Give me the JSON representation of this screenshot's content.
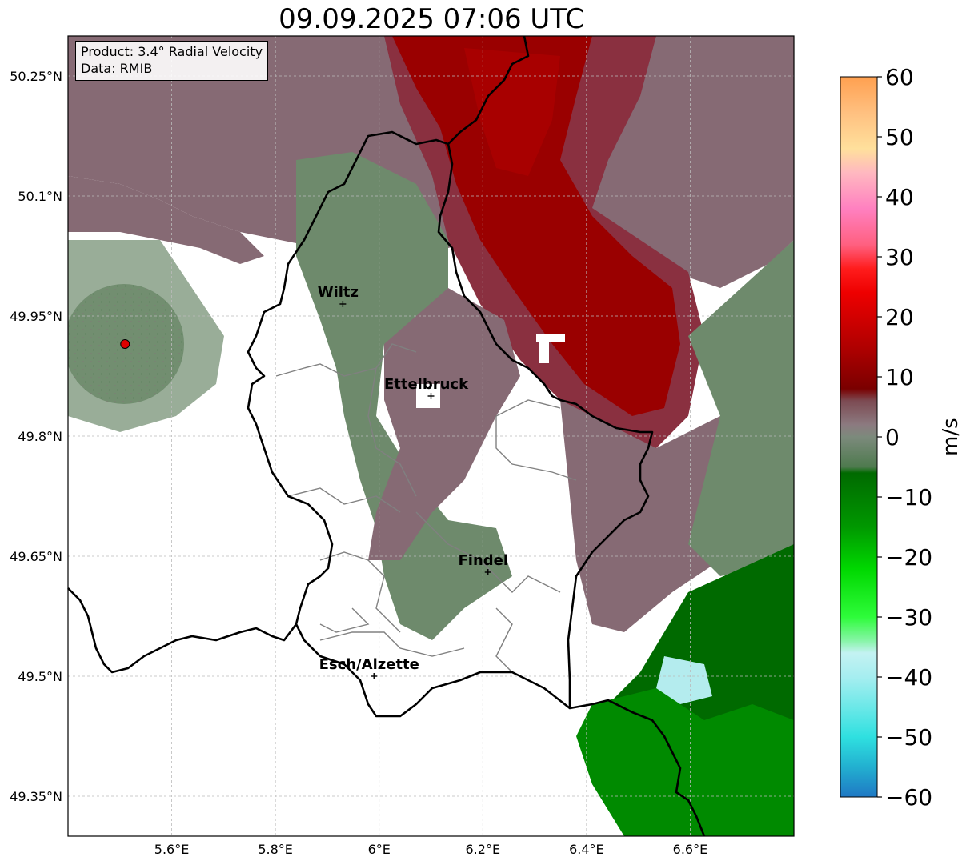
{
  "title": "09.09.2025 07:06 UTC",
  "info": {
    "product": "Product: 3.4° Radial Velocity",
    "data": "Data: RMIB"
  },
  "map": {
    "lon_range": [
      5.4,
      6.8
    ],
    "lat_range": [
      49.3,
      50.3
    ],
    "lon_ticks": [
      "5.6°E",
      "5.8°E",
      "6°E",
      "6.2°E",
      "6.4°E",
      "6.6°E"
    ],
    "lat_ticks": [
      "50.25°N",
      "50.1°N",
      "49.95°N",
      "49.8°N",
      "49.65°N",
      "49.5°N",
      "49.35°N"
    ],
    "radar_site": {
      "lon": 5.51,
      "lat": 49.915,
      "color": "#e00000"
    },
    "cities": [
      {
        "name": "Wiltz",
        "lon": 5.93,
        "lat": 49.965
      },
      {
        "name": "Ettelbruck",
        "lon": 6.1,
        "lat": 49.85
      },
      {
        "name": "Findel",
        "lon": 6.21,
        "lat": 49.63
      },
      {
        "name": "Esch/Alzette",
        "lon": 5.99,
        "lat": 49.5
      }
    ]
  },
  "colorbar": {
    "label": "m/s",
    "min": -60,
    "max": 60,
    "ticks": [
      "60",
      "50",
      "40",
      "30",
      "20",
      "10",
      "0",
      "−10",
      "−20",
      "−30",
      "−40",
      "−50",
      "−60"
    ],
    "stops": [
      {
        "v": -60,
        "c": "#1f78c4"
      },
      {
        "v": -55,
        "c": "#22b0d0"
      },
      {
        "v": -50,
        "c": "#2fe0e0"
      },
      {
        "v": -45,
        "c": "#6ce8e8"
      },
      {
        "v": -40,
        "c": "#a6eef0"
      },
      {
        "v": -36,
        "c": "#c4f2f2"
      },
      {
        "v": -34,
        "c": "#88f5a8"
      },
      {
        "v": -30,
        "c": "#2efc3a"
      },
      {
        "v": -22,
        "c": "#00d800"
      },
      {
        "v": -15,
        "c": "#009800"
      },
      {
        "v": -6,
        "c": "#006a00"
      },
      {
        "v": -5,
        "c": "#4e7a4e"
      },
      {
        "v": 0,
        "c": "#7c8a7c"
      },
      {
        "v": 2,
        "c": "#8c7a80"
      },
      {
        "v": 6,
        "c": "#7c4a52"
      },
      {
        "v": 8,
        "c": "#7a0000"
      },
      {
        "v": 15,
        "c": "#b00000"
      },
      {
        "v": 24,
        "c": "#ee0000"
      },
      {
        "v": 28,
        "c": "#ff1c1c"
      },
      {
        "v": 32,
        "c": "#ff6080"
      },
      {
        "v": 38,
        "c": "#ff80c0"
      },
      {
        "v": 44,
        "c": "#ffb8c0"
      },
      {
        "v": 48,
        "c": "#ffe09c"
      },
      {
        "v": 54,
        "c": "#ffc080"
      },
      {
        "v": 60,
        "c": "#ffa050"
      }
    ]
  },
  "colors": {
    "inbound_green": "#006a00",
    "near_zero_green": "#6e8a6c",
    "near_zero_mauve": "#866a74",
    "outbound_dark": "#8a3040",
    "outbound_red": "#9a0000",
    "border": "#000000",
    "canton": "#808080"
  }
}
